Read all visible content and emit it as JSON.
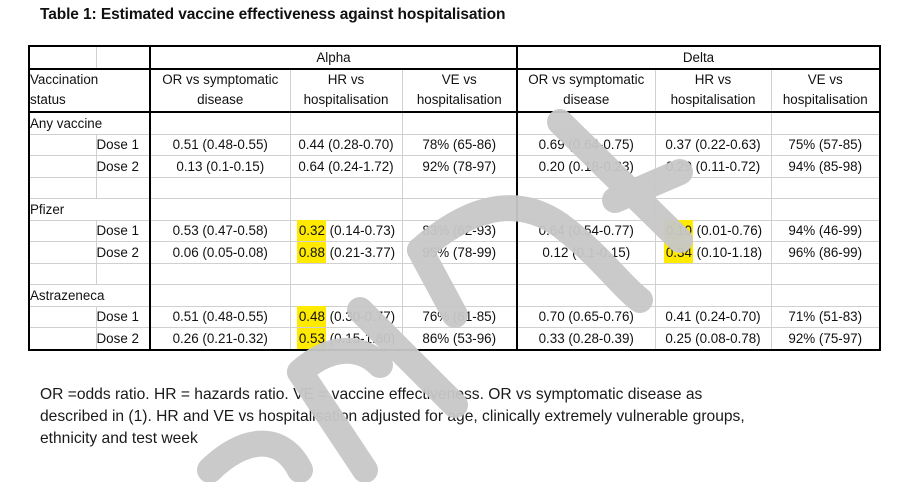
{
  "title": "Table 1: Estimated vaccine effectiveness against hospitalisation",
  "table": {
    "variant_headers": [
      "Alpha",
      "Delta"
    ],
    "row_header_label": "Vaccination status",
    "column_headers": [
      "OR vs symptomatic disease",
      "HR vs hospitalisation",
      "VE vs hospitalisation",
      "OR vs symptomatic disease",
      "HR vs hospitalisation",
      "VE vs hospitalisation"
    ],
    "column_headers_lines": [
      [
        "OR vs symptomatic",
        "disease"
      ],
      [
        "HR vs",
        "hospitalisation"
      ],
      [
        "VE vs",
        "hospitalisation"
      ],
      [
        "OR vs symptomatic",
        "disease"
      ],
      [
        "HR vs",
        "hospitalisation"
      ],
      [
        "VE vs",
        "hospitalisation"
      ]
    ],
    "groups": [
      {
        "name": "Any vaccine",
        "rows": [
          {
            "dose": "Dose 1",
            "alpha": {
              "or": "0.51 (0.48-0.55)",
              "hr_point": "0.44",
              "hr_ci": "(0.28-0.70)",
              "hr_highlight": false,
              "ve": "78% (65-86)"
            },
            "delta": {
              "or": "0.69 (0.64-0.75)",
              "hr_point": "0.37",
              "hr_ci": "(0.22-0.63)",
              "hr_highlight": false,
              "ve": "75% (57-85)"
            }
          },
          {
            "dose": "Dose 2",
            "alpha": {
              "or": "0.13 (0.1-0.15)",
              "hr_point": "0.64",
              "hr_ci": "(0.24-1.72)",
              "hr_highlight": false,
              "ve": "92% (78-97)"
            },
            "delta": {
              "or": "0.20 (0.18-0.23)",
              "hr_point": "0.29",
              "hr_ci": "(0.11-0.72)",
              "hr_highlight": false,
              "ve": "94% (85-98)"
            }
          }
        ]
      },
      {
        "name": "Pfizer",
        "rows": [
          {
            "dose": "Dose 1",
            "alpha": {
              "or": "0.53 (0.47-0.58)",
              "hr_point": "0.32",
              "hr_ci": "(0.14-0.73)",
              "hr_highlight": true,
              "ve": "83% (62-93)"
            },
            "delta": {
              "or": "0.64 (0.54-0.77)",
              "hr_point": "0.10",
              "hr_ci": "(0.01-0.76)",
              "hr_highlight": true,
              "ve": "94% (46-99)"
            }
          },
          {
            "dose": "Dose 2",
            "alpha": {
              "or": "0.06 (0.05-0.08)",
              "hr_point": "0.88",
              "hr_ci": "(0.21-3.77)",
              "hr_highlight": true,
              "ve": "95% (78-99)"
            },
            "delta": {
              "or": "0.12 (0.1-0.15)",
              "hr_point": "0.34",
              "hr_ci": "(0.10-1.18)",
              "hr_highlight": true,
              "ve": "96% (86-99)"
            }
          }
        ]
      },
      {
        "name": "Astrazeneca",
        "rows": [
          {
            "dose": "Dose 1",
            "alpha": {
              "or": "0.51 (0.48-0.55)",
              "hr_point": "0.48",
              "hr_ci": "(0.30-0.77)",
              "hr_highlight": true,
              "ve": "76% (61-85)"
            },
            "delta": {
              "or": "0.70 (0.65-0.76)",
              "hr_point": "0.41",
              "hr_ci": "(0.24-0.70)",
              "hr_highlight": false,
              "ve": "71% (51-83)"
            }
          },
          {
            "dose": "Dose 2",
            "alpha": {
              "or": "0.26 (0.21-0.32)",
              "hr_point": "0.53",
              "hr_ci": "(0.15-1.80)",
              "hr_highlight": true,
              "ve": "86% (53-96)"
            },
            "delta": {
              "or": "0.33 (0.28-0.39)",
              "hr_point": "0.25",
              "hr_ci": "(0.08-0.78)",
              "hr_highlight": false,
              "ve": "92% (75-97)"
            }
          }
        ]
      }
    ]
  },
  "footnote": "OR =odds ratio. HR = hazards ratio. VE = vaccine effectiveness. OR vs symptomatic disease as described in (1). HR and VE vs hospitalisation adjusted for age, clinically extremely vulnerable groups, ethnicity and test week",
  "watermark": {
    "text": "preprint",
    "icon": "preprint-watermark",
    "color": "#c8c8c8"
  },
  "colors": {
    "highlight": "#ffea00",
    "grid": "#d0d0d0",
    "border": "#000000"
  }
}
